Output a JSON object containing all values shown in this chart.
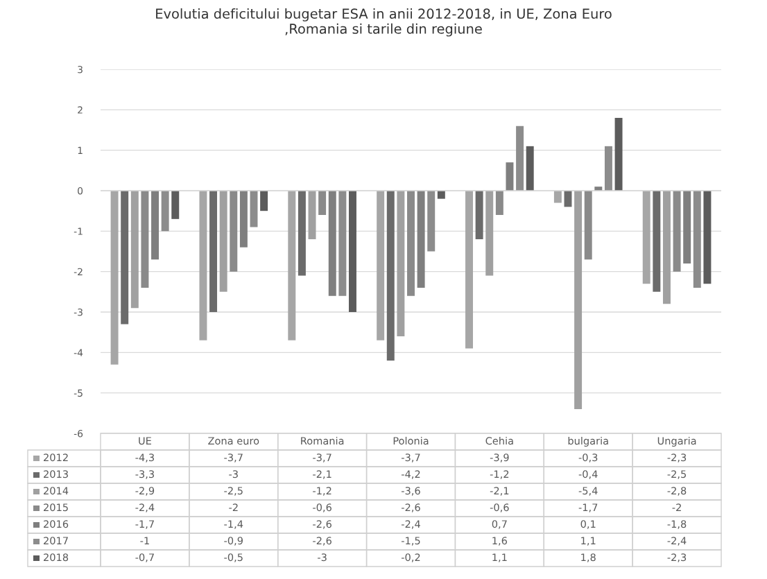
{
  "chart_data": {
    "type": "bar",
    "title": "Evolutia deficitului bugetar ESA in anii 2012-2018, in UE, Zona Euro\n,Romania si tarile din regiune",
    "categories": [
      "UE",
      "Zona euro",
      "Romania",
      "Polonia",
      "Cehia",
      "bulgaria",
      "Ungaria"
    ],
    "series": [
      {
        "name": "2012",
        "color": "#a6a6a6",
        "values": [
          -4.3,
          -3.7,
          -3.7,
          -3.7,
          -3.9,
          -0.3,
          -2.3
        ],
        "value_labels": [
          "-4,3",
          "-3,7",
          "-3,7",
          "-3,7",
          "-3,9",
          "-0,3",
          "-2,3"
        ]
      },
      {
        "name": "2013",
        "color": "#6b6b6b",
        "values": [
          -3.3,
          -3,
          -2.1,
          -4.2,
          -1.2,
          -0.4,
          -2.5
        ],
        "value_labels": [
          "-3,3",
          "-3",
          "-2,1",
          "-4,2",
          "-1,2",
          "-0,4",
          "-2,5"
        ]
      },
      {
        "name": "2014",
        "color": "#a0a0a0",
        "values": [
          -2.9,
          -2.5,
          -1.2,
          -3.6,
          -2.1,
          -5.4,
          -2.8
        ],
        "value_labels": [
          "-2,9",
          "-2,5",
          "-1,2",
          "-3,6",
          "-2,1",
          "-5,4",
          "-2,8"
        ]
      },
      {
        "name": "2015",
        "color": "#8a8a8a",
        "values": [
          -2.4,
          -2,
          -0.6,
          -2.6,
          -0.6,
          -1.7,
          -2
        ],
        "value_labels": [
          "-2,4",
          "-2",
          "-0,6",
          "-2,6",
          "-0,6",
          "-1,7",
          "-2"
        ]
      },
      {
        "name": "2016",
        "color": "#7f7f7f",
        "values": [
          -1.7,
          -1.4,
          -2.6,
          -2.4,
          0.7,
          0.1,
          -1.8
        ],
        "value_labels": [
          "-1,7",
          "-1,4",
          "-2,6",
          "-2,4",
          "0,7",
          "0,1",
          "-1,8"
        ]
      },
      {
        "name": "2017",
        "color": "#8c8c8c",
        "values": [
          -1,
          -0.9,
          -2.6,
          -1.5,
          1.6,
          1.1,
          -2.4
        ],
        "value_labels": [
          "-1",
          "-0,9",
          "-2,6",
          "-1,5",
          "1,6",
          "1,1",
          "-2,4"
        ]
      },
      {
        "name": "2018",
        "color": "#5c5c5c",
        "values": [
          -0.7,
          -0.5,
          -3,
          -0.2,
          1.1,
          1.8,
          -2.3
        ],
        "value_labels": [
          "-0,7",
          "-0,5",
          "-3",
          "-0,2",
          "1,1",
          "1,8",
          "-2,3"
        ]
      }
    ],
    "ylim": [
      -6,
      3
    ],
    "yticks": [
      -6,
      -5,
      -4,
      -3,
      -2,
      -1,
      0,
      1,
      2,
      3
    ],
    "grid": "y",
    "legend": "bottom"
  }
}
